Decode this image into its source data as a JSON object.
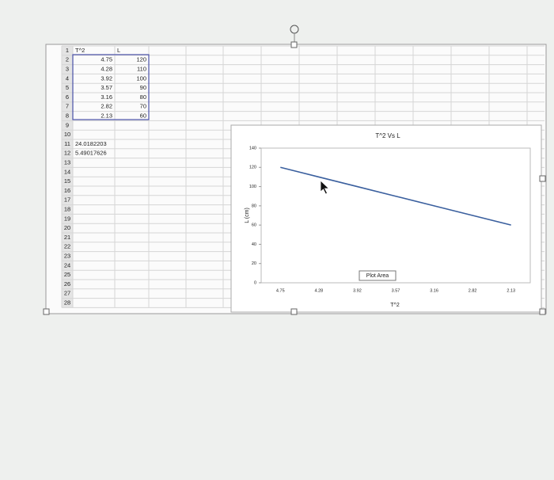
{
  "spreadsheet": {
    "row_numbers": [
      1,
      2,
      3,
      4,
      5,
      6,
      7,
      8,
      9,
      10,
      11,
      12,
      13,
      14,
      15,
      16,
      17,
      18,
      19,
      20,
      21,
      22,
      23,
      24,
      25,
      26,
      27,
      28
    ],
    "rows": [
      [
        "T^2",
        "L"
      ],
      [
        4.75,
        120
      ],
      [
        4.28,
        110
      ],
      [
        3.92,
        100
      ],
      [
        3.57,
        90
      ],
      [
        3.16,
        80
      ],
      [
        2.82,
        70
      ],
      [
        2.13,
        60
      ],
      [
        null,
        null
      ],
      [
        null,
        null
      ],
      [
        24.0182203,
        null
      ],
      [
        5.49017626,
        null
      ]
    ]
  },
  "chart_data": {
    "type": "line",
    "title": "T^2 Vs L",
    "x_label": "T^2",
    "y_label": "L (cm)",
    "categories": [
      "4.75",
      "4.28",
      "3.92",
      "3.57",
      "3.16",
      "2.82",
      "2.13"
    ],
    "series": [
      {
        "color": "#3a5f9e",
        "values": [
          120,
          110,
          100,
          90,
          80,
          70,
          60
        ]
      }
    ],
    "ylim": [
      0,
      140
    ],
    "yticks": [
      0,
      20,
      40,
      60,
      80,
      100,
      120,
      140
    ],
    "grid": false,
    "annotation": "Plot Area"
  }
}
